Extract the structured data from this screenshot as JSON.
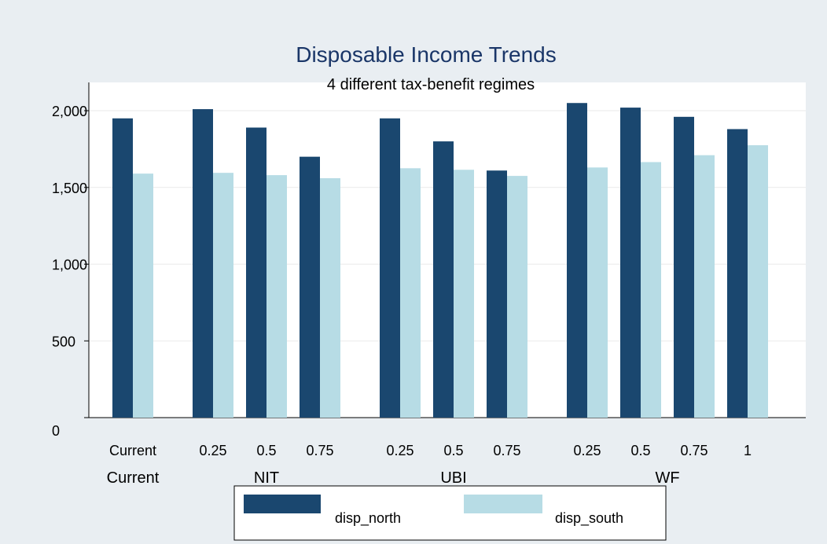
{
  "chart_data": {
    "type": "bar",
    "title": "Disposable Income Trends",
    "subtitle": "4 different tax-benefit regimes",
    "xlabel": "",
    "ylabel": "",
    "ylim": [
      0,
      2000
    ],
    "yticks": [
      0,
      500,
      1000,
      1500,
      2000
    ],
    "ytick_labels": [
      "0",
      "500",
      "1,000",
      "1,500",
      "2,000"
    ],
    "grid": true,
    "legend_position": "bottom",
    "groups": [
      {
        "label": "Current",
        "categories": [
          "Current"
        ]
      },
      {
        "label": "NIT",
        "categories": [
          "0.25",
          "0.5",
          "0.75"
        ]
      },
      {
        "label": "UBI",
        "categories": [
          "0.25",
          "0.5",
          "0.75"
        ]
      },
      {
        "label": "WF",
        "categories": [
          "0.25",
          "0.5",
          "0.75",
          "1"
        ]
      }
    ],
    "series": [
      {
        "name": "disp_north",
        "color": "#1a476f",
        "values": [
          1950,
          2010,
          1890,
          1700,
          1950,
          1800,
          1610,
          2050,
          2020,
          1960,
          1880
        ]
      },
      {
        "name": "disp_south",
        "color": "#b7dce5",
        "values": [
          1590,
          1595,
          1580,
          1560,
          1625,
          1615,
          1575,
          1630,
          1665,
          1710,
          1775
        ]
      }
    ]
  }
}
